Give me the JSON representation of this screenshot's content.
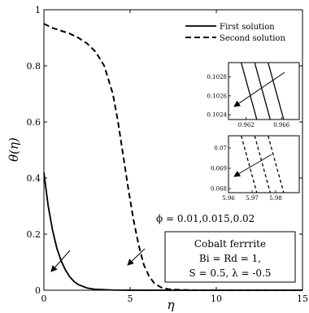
{
  "chart_data": {
    "type": "line",
    "title": "",
    "xlabel": "η",
    "ylabel": "θ(η)",
    "xlim": [
      0,
      15
    ],
    "ylim": [
      0,
      1
    ],
    "xticks": [
      "0",
      "5",
      "10",
      "15"
    ],
    "yticks": [
      "0",
      "0.2",
      "0.4",
      "0.6",
      "0.8",
      "1"
    ],
    "grid": false,
    "legend_position": "top-right",
    "series": [
      {
        "name": "First solution",
        "style": "solid",
        "x": [
          0,
          0.25,
          0.5,
          0.75,
          1.0,
          1.25,
          1.5,
          1.75,
          2.0,
          2.5,
          3.0,
          4.0,
          5.0,
          7.0,
          10.0,
          15.0
        ],
        "y": [
          0.42,
          0.3,
          0.215,
          0.15,
          0.105,
          0.072,
          0.048,
          0.031,
          0.02,
          0.008,
          0.003,
          0.0008,
          0.0002,
          0,
          0,
          0
        ]
      },
      {
        "name": "Second solution",
        "style": "dashed",
        "x": [
          0,
          0.5,
          1.0,
          1.5,
          2.0,
          2.5,
          3.0,
          3.5,
          4.0,
          4.3,
          4.6,
          4.9,
          5.2,
          5.5,
          5.8,
          6.1,
          6.4,
          6.8,
          7.2,
          8.0,
          9.0,
          10.0,
          15.0
        ],
        "y": [
          0.95,
          0.935,
          0.925,
          0.915,
          0.9,
          0.88,
          0.85,
          0.8,
          0.7,
          0.6,
          0.48,
          0.36,
          0.25,
          0.16,
          0.09,
          0.05,
          0.025,
          0.01,
          0.004,
          0.001,
          0,
          0,
          0
        ]
      }
    ],
    "annotations": {
      "phi_label": "ϕ = 0.01,0.015,0.02",
      "info_box": [
        "Cobalt ferrrite",
        "Bi = Rd = 1,",
        "S = 0.5,   λ = -0.5"
      ]
    },
    "insets": [
      {
        "name": "first-solution-zoom",
        "xlim": [
          0.96,
          0.968
        ],
        "ylim": [
          0.10235,
          0.10295
        ],
        "xticks": [
          "0.962",
          "0.966"
        ],
        "yticks": [
          "0.1024",
          "0.1026",
          "0.1028"
        ],
        "style": "solid"
      },
      {
        "name": "second-solution-zoom",
        "xlim": [
          5.96,
          5.99
        ],
        "ylim": [
          0.0678,
          0.0706
        ],
        "xticks": [
          "5.96",
          "5.97",
          "5.98"
        ],
        "yticks": [
          "0.068",
          "0.069",
          "0.07"
        ],
        "style": "dashed"
      }
    ]
  }
}
